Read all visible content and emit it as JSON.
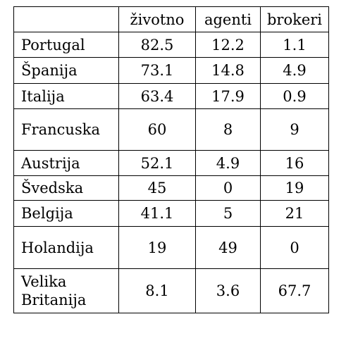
{
  "table": {
    "headers": [
      "",
      "životno",
      "agenti",
      "brokeri"
    ],
    "rows": [
      {
        "label": "Portugal",
        "values": [
          "82.5",
          "12.2",
          "1.1"
        ]
      },
      {
        "label": "Španija",
        "values": [
          "73.1",
          "14.8",
          "4.9"
        ]
      },
      {
        "label": "Italija",
        "values": [
          "63.4",
          "17.9",
          "0.9"
        ]
      },
      {
        "label": "Francuska",
        "values": [
          "60",
          "8",
          "9"
        ]
      },
      {
        "label": "Austrija",
        "values": [
          "52.1",
          "4.9",
          "16"
        ]
      },
      {
        "label": "Švedska",
        "values": [
          "45",
          "0",
          "19"
        ]
      },
      {
        "label": "Belgija",
        "values": [
          "41.1",
          "5",
          "21"
        ]
      },
      {
        "label": "Holandija",
        "values": [
          "19",
          "49",
          "0"
        ]
      },
      {
        "label": "Velika Britanija",
        "values": [
          "8.1",
          "3.6",
          "67.7"
        ]
      }
    ]
  }
}
